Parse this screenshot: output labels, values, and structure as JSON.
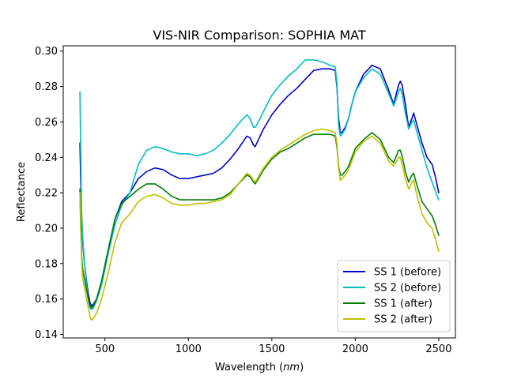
{
  "chart_data": {
    "type": "line",
    "title": "VIS-NIR Comparison: SOPHIA MAT",
    "xlabel": "Wavelength",
    "xlabel_unit": "nm",
    "ylabel": "Reflectance",
    "xlim": [
      250,
      2600
    ],
    "ylim": [
      0.138,
      0.303
    ],
    "xticks": [
      500,
      1000,
      1500,
      2000,
      2500
    ],
    "yticks": [
      0.14,
      0.16,
      0.18,
      0.2,
      0.22,
      0.24,
      0.26,
      0.28,
      0.3
    ],
    "ytick_labels": [
      "0.14",
      "0.16",
      "0.18",
      "0.20",
      "0.22",
      "0.24",
      "0.26",
      "0.28",
      "0.30"
    ],
    "grid": false,
    "legend_position": "lower-right",
    "series": [
      {
        "name": "SS 1 (before)",
        "color": "#0000cc",
        "x": [
          350,
          355,
          360,
          365,
          370,
          380,
          390,
          400,
          410,
          420,
          430,
          450,
          480,
          520,
          560,
          600,
          650,
          700,
          750,
          800,
          850,
          900,
          950,
          1000,
          1050,
          1100,
          1150,
          1200,
          1250,
          1300,
          1350,
          1370,
          1390,
          1400,
          1420,
          1450,
          1500,
          1550,
          1600,
          1650,
          1700,
          1750,
          1800,
          1850,
          1880,
          1890,
          1900,
          1910,
          1920,
          1940,
          1960,
          1980,
          2000,
          2050,
          2100,
          2150,
          2200,
          2230,
          2260,
          2270,
          2280,
          2300,
          2320,
          2340,
          2350,
          2370,
          2400,
          2430,
          2460,
          2480,
          2500
        ],
        "y": [
          0.248,
          0.225,
          0.205,
          0.195,
          0.188,
          0.178,
          0.17,
          0.163,
          0.158,
          0.156,
          0.157,
          0.16,
          0.17,
          0.188,
          0.205,
          0.215,
          0.22,
          0.228,
          0.232,
          0.234,
          0.233,
          0.23,
          0.228,
          0.228,
          0.229,
          0.23,
          0.231,
          0.234,
          0.239,
          0.245,
          0.252,
          0.251,
          0.247,
          0.246,
          0.25,
          0.256,
          0.264,
          0.27,
          0.275,
          0.279,
          0.284,
          0.289,
          0.29,
          0.29,
          0.289,
          0.28,
          0.262,
          0.254,
          0.254,
          0.257,
          0.262,
          0.27,
          0.277,
          0.287,
          0.292,
          0.29,
          0.278,
          0.27,
          0.281,
          0.283,
          0.281,
          0.27,
          0.257,
          0.262,
          0.265,
          0.258,
          0.248,
          0.24,
          0.236,
          0.229,
          0.22
        ]
      },
      {
        "name": "SS 2 (before)",
        "color": "#00bfbf",
        "x": [
          350,
          355,
          360,
          365,
          370,
          380,
          390,
          400,
          410,
          420,
          430,
          450,
          480,
          520,
          560,
          600,
          650,
          700,
          750,
          800,
          850,
          900,
          950,
          1000,
          1050,
          1100,
          1150,
          1200,
          1250,
          1300,
          1350,
          1370,
          1390,
          1400,
          1420,
          1450,
          1500,
          1550,
          1600,
          1650,
          1700,
          1750,
          1800,
          1850,
          1880,
          1890,
          1900,
          1910,
          1920,
          1940,
          1960,
          1980,
          2000,
          2050,
          2100,
          2150,
          2200,
          2230,
          2260,
          2270,
          2280,
          2300,
          2320,
          2340,
          2350,
          2370,
          2400,
          2430,
          2460,
          2480,
          2500
        ],
        "y": [
          0.277,
          0.24,
          0.21,
          0.198,
          0.19,
          0.178,
          0.168,
          0.16,
          0.155,
          0.154,
          0.155,
          0.159,
          0.168,
          0.186,
          0.202,
          0.213,
          0.22,
          0.236,
          0.244,
          0.246,
          0.245,
          0.243,
          0.242,
          0.242,
          0.241,
          0.242,
          0.244,
          0.248,
          0.253,
          0.259,
          0.264,
          0.262,
          0.257,
          0.257,
          0.26,
          0.266,
          0.275,
          0.281,
          0.286,
          0.29,
          0.295,
          0.295,
          0.294,
          0.292,
          0.291,
          0.282,
          0.258,
          0.252,
          0.253,
          0.256,
          0.262,
          0.27,
          0.277,
          0.285,
          0.29,
          0.287,
          0.276,
          0.269,
          0.277,
          0.279,
          0.276,
          0.265,
          0.256,
          0.26,
          0.261,
          0.254,
          0.244,
          0.234,
          0.226,
          0.221,
          0.216
        ]
      },
      {
        "name": "SS 1 (after)",
        "color": "#007f00",
        "x": [
          350,
          355,
          360,
          365,
          370,
          380,
          390,
          400,
          410,
          420,
          430,
          450,
          480,
          520,
          560,
          600,
          650,
          700,
          750,
          800,
          850,
          900,
          950,
          1000,
          1050,
          1100,
          1150,
          1200,
          1250,
          1300,
          1350,
          1370,
          1390,
          1400,
          1420,
          1450,
          1500,
          1550,
          1600,
          1650,
          1700,
          1750,
          1800,
          1850,
          1880,
          1890,
          1900,
          1910,
          1920,
          1940,
          1960,
          1980,
          2000,
          2050,
          2100,
          2150,
          2200,
          2230,
          2260,
          2270,
          2280,
          2300,
          2320,
          2340,
          2350,
          2370,
          2400,
          2430,
          2460,
          2480,
          2500
        ],
        "y": [
          0.222,
          0.2,
          0.185,
          0.178,
          0.175,
          0.17,
          0.165,
          0.16,
          0.156,
          0.155,
          0.156,
          0.16,
          0.17,
          0.188,
          0.205,
          0.214,
          0.218,
          0.222,
          0.225,
          0.225,
          0.222,
          0.218,
          0.216,
          0.216,
          0.216,
          0.216,
          0.216,
          0.217,
          0.22,
          0.225,
          0.23,
          0.229,
          0.226,
          0.225,
          0.228,
          0.233,
          0.239,
          0.243,
          0.245,
          0.248,
          0.251,
          0.253,
          0.253,
          0.253,
          0.252,
          0.246,
          0.235,
          0.23,
          0.23,
          0.232,
          0.235,
          0.24,
          0.245,
          0.25,
          0.254,
          0.25,
          0.24,
          0.237,
          0.244,
          0.244,
          0.241,
          0.232,
          0.226,
          0.23,
          0.231,
          0.224,
          0.215,
          0.211,
          0.207,
          0.202,
          0.196
        ]
      },
      {
        "name": "SS 2 (after)",
        "color": "#bfbf00",
        "x": [
          350,
          355,
          360,
          365,
          370,
          380,
          390,
          400,
          410,
          420,
          430,
          450,
          480,
          520,
          560,
          600,
          650,
          700,
          750,
          800,
          850,
          900,
          950,
          1000,
          1050,
          1100,
          1150,
          1200,
          1250,
          1300,
          1350,
          1370,
          1390,
          1400,
          1420,
          1450,
          1500,
          1550,
          1600,
          1650,
          1700,
          1750,
          1800,
          1850,
          1880,
          1890,
          1900,
          1910,
          1920,
          1940,
          1960,
          1980,
          2000,
          2050,
          2100,
          2150,
          2200,
          2230,
          2260,
          2270,
          2280,
          2300,
          2320,
          2340,
          2350,
          2370,
          2400,
          2430,
          2460,
          2480,
          2500
        ],
        "y": [
          0.22,
          0.198,
          0.182,
          0.173,
          0.17,
          0.165,
          0.16,
          0.155,
          0.15,
          0.148,
          0.149,
          0.152,
          0.16,
          0.175,
          0.192,
          0.203,
          0.208,
          0.215,
          0.218,
          0.219,
          0.217,
          0.214,
          0.213,
          0.213,
          0.214,
          0.214,
          0.215,
          0.216,
          0.219,
          0.225,
          0.231,
          0.23,
          0.227,
          0.226,
          0.229,
          0.234,
          0.24,
          0.244,
          0.247,
          0.25,
          0.253,
          0.255,
          0.256,
          0.255,
          0.254,
          0.248,
          0.234,
          0.227,
          0.228,
          0.23,
          0.233,
          0.238,
          0.243,
          0.249,
          0.252,
          0.248,
          0.238,
          0.235,
          0.24,
          0.24,
          0.236,
          0.228,
          0.222,
          0.226,
          0.227,
          0.218,
          0.208,
          0.203,
          0.2,
          0.194,
          0.187
        ]
      }
    ]
  }
}
